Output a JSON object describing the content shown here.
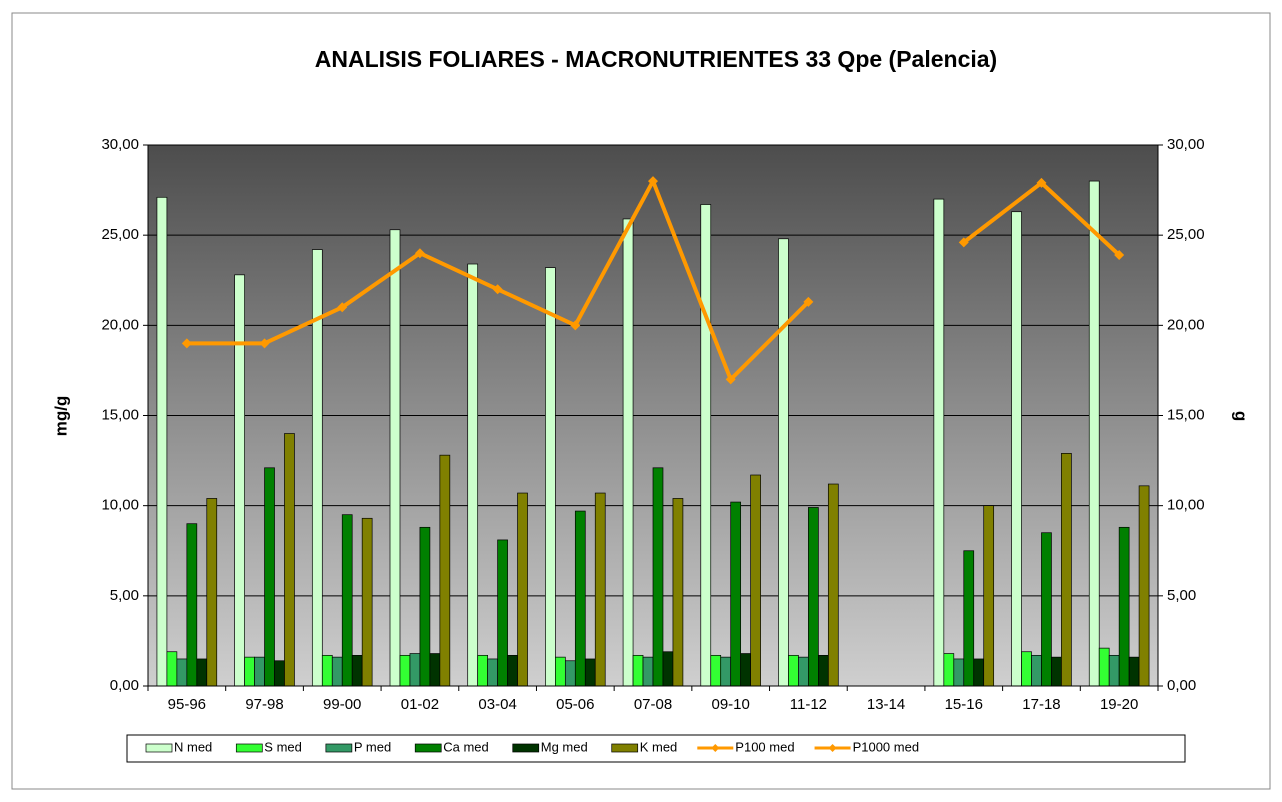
{
  "chart_data": {
    "type": "bar",
    "title": "ANALISIS FOLIARES - MACRONUTRIENTES 33 Qpe (Palencia)",
    "y_label": "mg/g",
    "y2_label": "g",
    "categories": [
      "95-96",
      "97-98",
      "99-00",
      "01-02",
      "03-04",
      "05-06",
      "07-08",
      "09-10",
      "11-12",
      "13-14",
      "15-16",
      "17-18",
      "19-20"
    ],
    "series": [
      {
        "name": "N med",
        "color": "#ccffcc",
        "values": [
          27.1,
          22.8,
          24.2,
          25.3,
          23.4,
          23.2,
          25.9,
          26.7,
          24.8,
          null,
          27.0,
          26.3,
          28.0
        ]
      },
      {
        "name": "S med",
        "color": "#33ff33",
        "values": [
          1.9,
          1.6,
          1.7,
          1.7,
          1.7,
          1.6,
          1.7,
          1.7,
          1.7,
          null,
          1.8,
          1.9,
          2.1
        ]
      },
      {
        "name": "P med",
        "color": "#339966",
        "values": [
          1.5,
          1.6,
          1.6,
          1.8,
          1.5,
          1.4,
          1.6,
          1.6,
          1.6,
          null,
          1.5,
          1.7,
          1.7
        ]
      },
      {
        "name": "Ca med",
        "color": "#008000",
        "values": [
          9.0,
          12.1,
          9.5,
          8.8,
          8.1,
          9.7,
          12.1,
          10.2,
          9.9,
          null,
          7.5,
          8.5,
          8.8
        ]
      },
      {
        "name": "Mg med",
        "color": "#003300",
        "values": [
          1.5,
          1.4,
          1.7,
          1.8,
          1.7,
          1.5,
          1.9,
          1.8,
          1.7,
          null,
          1.5,
          1.6,
          1.6
        ]
      },
      {
        "name": "K med",
        "color": "#808000",
        "values": [
          10.4,
          14.0,
          9.3,
          12.8,
          10.7,
          10.7,
          10.4,
          11.7,
          11.2,
          null,
          10.0,
          12.9,
          11.1
        ]
      },
      {
        "name": "P100 med",
        "color": "#ff9900",
        "type": "line",
        "axis": "y2",
        "values": [
          19.0,
          19.0,
          21.0,
          24.0,
          22.0,
          20.0,
          28.0,
          17.0,
          21.3,
          null,
          24.6,
          27.9,
          23.9
        ]
      },
      {
        "name": "P1000 med",
        "color": "#ff9900",
        "type": "line",
        "axis": "y2",
        "values": [
          null,
          null,
          null,
          null,
          null,
          null,
          null,
          null,
          null,
          null,
          null,
          null,
          null
        ]
      }
    ],
    "ylim": [
      0,
      30
    ],
    "yticks": [
      {
        "value": 0,
        "label": "0,00"
      },
      {
        "value": 5,
        "label": "5,00"
      },
      {
        "value": 10,
        "label": "10,00"
      },
      {
        "value": 15,
        "label": "15,00"
      },
      {
        "value": 20,
        "label": "20,00"
      },
      {
        "value": 25,
        "label": "25,00"
      },
      {
        "value": 30,
        "label": "30,00"
      }
    ],
    "y2lim": [
      0,
      30
    ],
    "y2ticks": [
      {
        "value": 0,
        "label": "0,00"
      },
      {
        "value": 5,
        "label": "5,00"
      },
      {
        "value": 10,
        "label": "10,00"
      },
      {
        "value": 15,
        "label": "15,00"
      },
      {
        "value": 20,
        "label": "20,00"
      },
      {
        "value": 25,
        "label": "25,00"
      },
      {
        "value": 30,
        "label": "30,00"
      }
    ],
    "grid": true,
    "legend": "bottom"
  }
}
